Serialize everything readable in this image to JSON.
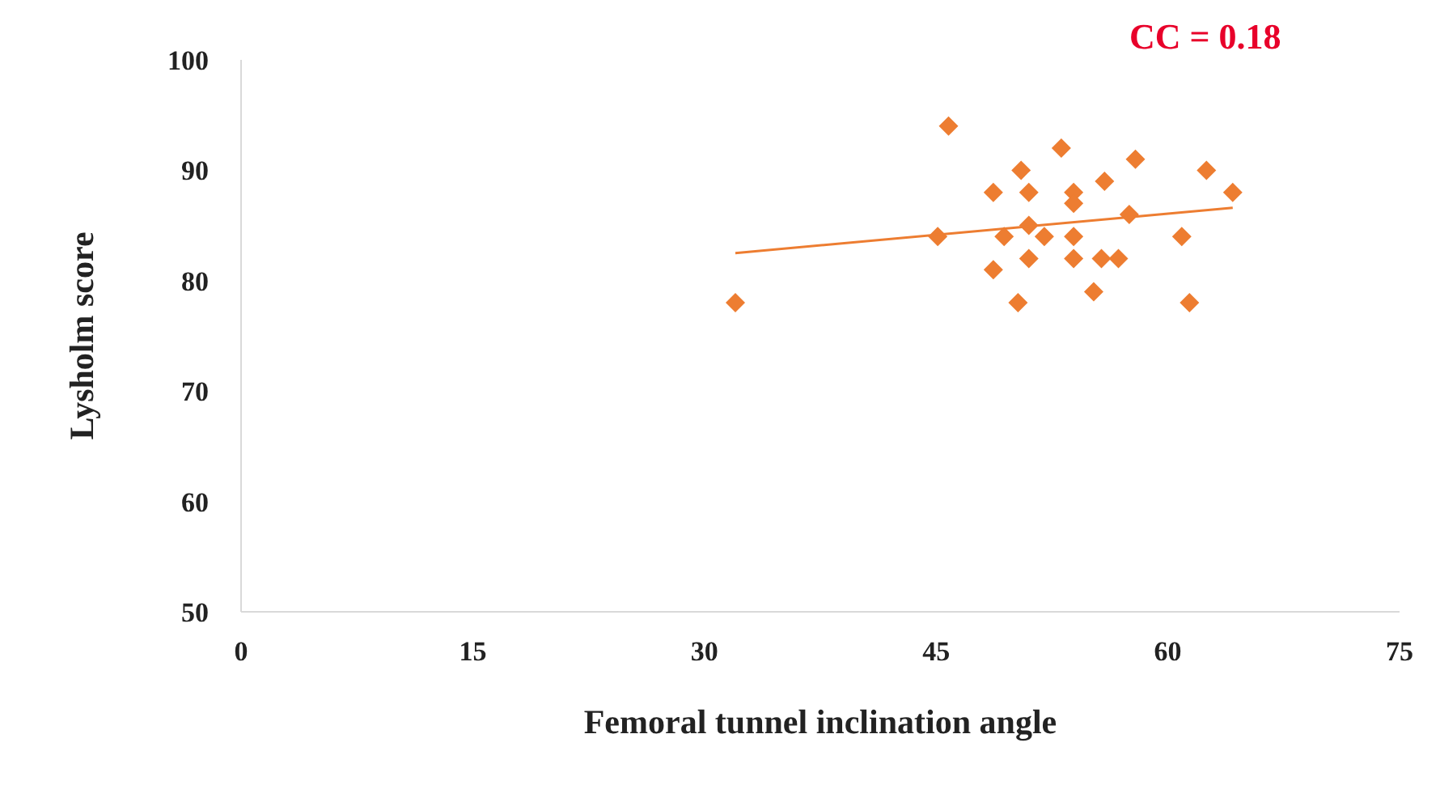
{
  "chart_data": {
    "type": "scatter",
    "xlabel": "Femoral tunnel inclination angle",
    "ylabel": "Lysholm score",
    "annotations": [
      "CC = 0.18"
    ],
    "xlim": [
      0,
      75
    ],
    "xticks": [
      0,
      15,
      30,
      45,
      60,
      75
    ],
    "ylim": [
      50,
      100
    ],
    "yticks": [
      50,
      60,
      70,
      80,
      90,
      100
    ],
    "grid": false,
    "legend": false,
    "series": [
      {
        "type": "scatter",
        "marker": "diamond",
        "color": "#ed7d31",
        "x": [
          32,
          45.8,
          45.1,
          48.7,
          48.7,
          49.4,
          50.5,
          50.3,
          51,
          51,
          51,
          52,
          53.1,
          53.9,
          53.9,
          53.9,
          53.9,
          55.2,
          55.9,
          55.7,
          56.8,
          57.5,
          57.9,
          60.9,
          61.4,
          62.5,
          64.2
        ],
        "values": [
          78,
          94,
          84,
          88,
          81,
          84,
          90,
          78,
          88,
          85,
          82,
          84,
          92,
          88,
          87,
          84,
          82,
          79,
          89,
          82,
          82,
          86,
          91,
          84,
          78,
          90,
          88
        ]
      },
      {
        "type": "line",
        "marker": "none",
        "color": "#ed7d31",
        "x": [
          32,
          64.2
        ],
        "values": [
          82.5,
          86.6
        ]
      }
    ]
  }
}
